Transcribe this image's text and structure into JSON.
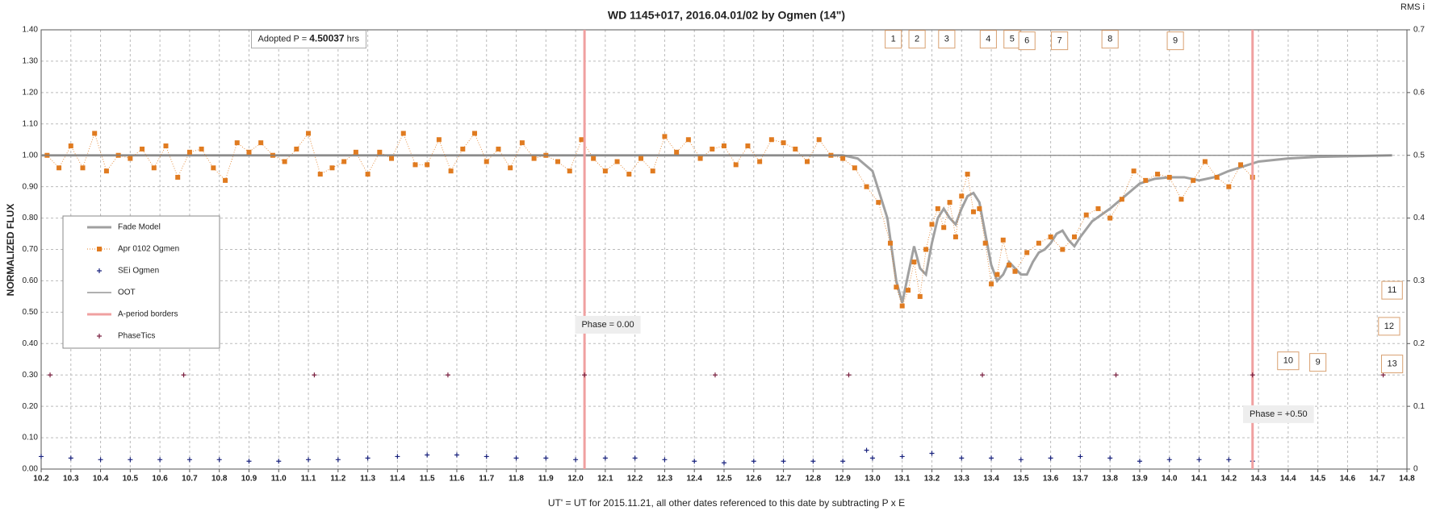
{
  "chart_data": {
    "type": "line",
    "title": "WD 1145+017, 2016.04.01/02 by Ogmen (14\")",
    "x_label": "UT' = UT for 2015.11.21, all other dates referenced to this date by subtracting P x E",
    "y_label": "NORMALIZED FLUX",
    "y2_label": "RMS i",
    "xlim": [
      10.2,
      14.8
    ],
    "ylim": [
      0,
      1.4
    ],
    "y2lim": [
      0,
      0.7
    ],
    "grid": true,
    "legend": "center-left",
    "xticks": [
      10.2,
      10.3,
      10.4,
      10.5,
      10.6,
      10.7,
      10.8,
      10.9,
      {
        "value": 11,
        "label": "11.0"
      },
      11.1,
      11.2,
      11.3,
      11.4,
      11.5,
      11.6,
      11.7,
      11.8,
      11.9,
      {
        "value": 12,
        "label": "12.0"
      },
      12.1,
      12.2,
      12.3,
      12.4,
      12.5,
      12.6,
      12.7,
      12.8,
      12.9,
      {
        "value": 13,
        "label": "13.0"
      },
      13.1,
      13.2,
      13.3,
      13.4,
      13.5,
      13.6,
      13.7,
      13.8,
      13.9,
      {
        "value": 14,
        "label": "14.0"
      },
      14.1,
      14.2,
      14.3,
      14.4,
      14.5,
      14.6,
      14.7,
      14.8
    ],
    "yticks": [
      {
        "value": 0,
        "label": "0.00"
      },
      {
        "value": 0.1,
        "label": "0.10"
      },
      {
        "value": 0.2,
        "label": "0.20"
      },
      {
        "value": 0.3,
        "label": "0.30"
      },
      {
        "value": 0.4,
        "label": "0.40"
      },
      {
        "value": 0.5,
        "label": "0.50"
      },
      {
        "value": 0.6,
        "label": "0.60"
      },
      {
        "value": 0.7,
        "label": "0.70"
      },
      {
        "value": 0.8,
        "label": "0.80"
      },
      {
        "value": 0.9,
        "label": "0.90"
      },
      {
        "value": 1,
        "label": "1.00"
      },
      {
        "value": 1.1,
        "label": "1.10"
      },
      {
        "value": 1.2,
        "label": "1.20"
      },
      {
        "value": 1.3,
        "label": "1.30"
      },
      {
        "value": 1.4,
        "label": "1.40"
      }
    ],
    "y2ticks": [
      0,
      0.1,
      0.2,
      0.3,
      0.4,
      0.5,
      0.6,
      0.7
    ],
    "series": [
      {
        "name": "Fade Model",
        "style": "line",
        "color": "#a0a0a0",
        "x": [
          10.2,
          12.9,
          12.95,
          13.0,
          13.05,
          13.08,
          13.1,
          13.12,
          13.14,
          13.16,
          13.18,
          13.2,
          13.22,
          13.24,
          13.26,
          13.28,
          13.3,
          13.32,
          13.34,
          13.36,
          13.38,
          13.4,
          13.42,
          13.44,
          13.46,
          13.48,
          13.5,
          13.52,
          13.54,
          13.56,
          13.58,
          13.6,
          13.62,
          13.64,
          13.66,
          13.68,
          13.7,
          13.74,
          13.8,
          13.85,
          13.9,
          13.95,
          14.0,
          14.05,
          14.1,
          14.15,
          14.2,
          14.3,
          14.4,
          14.5,
          14.75
        ],
        "values": [
          1.0,
          1.0,
          0.99,
          0.95,
          0.8,
          0.6,
          0.53,
          0.62,
          0.71,
          0.64,
          0.62,
          0.72,
          0.8,
          0.83,
          0.8,
          0.78,
          0.83,
          0.87,
          0.88,
          0.85,
          0.75,
          0.65,
          0.6,
          0.62,
          0.66,
          0.64,
          0.62,
          0.62,
          0.66,
          0.69,
          0.7,
          0.72,
          0.75,
          0.76,
          0.73,
          0.71,
          0.74,
          0.79,
          0.83,
          0.87,
          0.91,
          0.925,
          0.93,
          0.93,
          0.92,
          0.93,
          0.95,
          0.98,
          0.99,
          0.995,
          1.0
        ]
      },
      {
        "name": "Apr 0102 Ogmen",
        "style": "square-dotted",
        "color": "#e07b20",
        "x": [
          10.22,
          10.26,
          10.3,
          10.34,
          10.38,
          10.42,
          10.46,
          10.5,
          10.54,
          10.58,
          10.62,
          10.66,
          10.7,
          10.74,
          10.78,
          10.82,
          10.86,
          10.9,
          10.94,
          10.98,
          11.02,
          11.06,
          11.1,
          11.14,
          11.18,
          11.22,
          11.26,
          11.3,
          11.34,
          11.38,
          11.42,
          11.46,
          11.5,
          11.54,
          11.58,
          11.62,
          11.66,
          11.7,
          11.74,
          11.78,
          11.82,
          11.86,
          11.9,
          11.94,
          11.98,
          12.02,
          12.06,
          12.1,
          12.14,
          12.18,
          12.22,
          12.26,
          12.3,
          12.34,
          12.38,
          12.42,
          12.46,
          12.5,
          12.54,
          12.58,
          12.62,
          12.66,
          12.7,
          12.74,
          12.78,
          12.82,
          12.86,
          12.9,
          12.94,
          12.98,
          13.02,
          13.06,
          13.08,
          13.1,
          13.12,
          13.14,
          13.16,
          13.18,
          13.2,
          13.22,
          13.24,
          13.26,
          13.28,
          13.3,
          13.32,
          13.34,
          13.36,
          13.38,
          13.4,
          13.42,
          13.44,
          13.46,
          13.48,
          13.52,
          13.56,
          13.6,
          13.64,
          13.68,
          13.72,
          13.76,
          13.8,
          13.84,
          13.88,
          13.92,
          13.96,
          14.0,
          14.04,
          14.08,
          14.12,
          14.16,
          14.2,
          14.24,
          14.28
        ],
        "values": [
          1.0,
          0.96,
          1.03,
          0.96,
          1.07,
          0.95,
          1.0,
          0.99,
          1.02,
          0.96,
          1.03,
          0.93,
          1.01,
          1.02,
          0.96,
          0.92,
          1.04,
          1.01,
          1.04,
          1.0,
          0.98,
          1.02,
          1.07,
          0.94,
          0.96,
          0.98,
          1.01,
          0.94,
          1.01,
          0.99,
          1.07,
          0.97,
          0.97,
          1.05,
          0.95,
          1.02,
          1.07,
          0.98,
          1.02,
          0.96,
          1.04,
          0.99,
          1.0,
          0.98,
          0.95,
          1.05,
          0.99,
          0.95,
          0.98,
          0.94,
          0.99,
          0.95,
          1.06,
          1.01,
          1.05,
          0.99,
          1.02,
          1.03,
          0.97,
          1.03,
          0.98,
          1.05,
          1.04,
          1.02,
          0.98,
          1.05,
          1.0,
          0.99,
          0.96,
          0.9,
          0.85,
          0.72,
          0.58,
          0.52,
          0.57,
          0.66,
          0.55,
          0.7,
          0.78,
          0.83,
          0.77,
          0.85,
          0.74,
          0.87,
          0.94,
          0.82,
          0.83,
          0.72,
          0.59,
          0.62,
          0.73,
          0.65,
          0.63,
          0.69,
          0.72,
          0.74,
          0.7,
          0.74,
          0.81,
          0.83,
          0.8,
          0.86,
          0.95,
          0.92,
          0.94,
          0.93,
          0.86,
          0.92,
          0.98,
          0.93,
          0.9,
          0.97,
          0.93
        ]
      },
      {
        "name": "SEi Ogmen",
        "style": "plus",
        "color": "#1a237e",
        "x": [
          10.2,
          10.3,
          10.4,
          10.5,
          10.6,
          10.7,
          10.8,
          10.9,
          11.0,
          11.1,
          11.2,
          11.3,
          11.4,
          11.5,
          11.6,
          11.7,
          11.8,
          11.9,
          12.0,
          12.1,
          12.2,
          12.3,
          12.4,
          12.5,
          12.6,
          12.7,
          12.8,
          12.9,
          12.98,
          13.0,
          13.1,
          13.2,
          13.3,
          13.4,
          13.5,
          13.6,
          13.7,
          13.8,
          13.9,
          14.0,
          14.1,
          14.2,
          14.28
        ],
        "values": [
          0.04,
          0.035,
          0.03,
          0.03,
          0.03,
          0.03,
          0.03,
          0.025,
          0.025,
          0.03,
          0.03,
          0.035,
          0.04,
          0.045,
          0.045,
          0.04,
          0.035,
          0.035,
          0.03,
          0.035,
          0.035,
          0.03,
          0.025,
          0.02,
          0.025,
          0.025,
          0.025,
          0.025,
          0.06,
          0.035,
          0.04,
          0.05,
          0.035,
          0.035,
          0.03,
          0.035,
          0.04,
          0.035,
          0.025,
          0.03,
          0.03,
          0.03,
          0.025
        ]
      },
      {
        "name": "OOT",
        "style": "line",
        "color": "#808080",
        "x": [
          10.2,
          14.75
        ],
        "values": [
          1.0,
          1.0
        ]
      },
      {
        "name": "A-period borders",
        "style": "vline",
        "color": "#f0a0a0",
        "x": [
          12.03,
          14.28
        ]
      },
      {
        "name": "PhaseTics",
        "style": "plus",
        "color": "#7a2040",
        "x": [
          10.23,
          10.68,
          11.12,
          11.57,
          12.03,
          12.47,
          12.92,
          13.37,
          13.82,
          14.28,
          14.72
        ],
        "values": [
          0.3,
          0.3,
          0.3,
          0.3,
          0.3,
          0.3,
          0.3,
          0.3,
          0.3,
          0.3,
          0.3
        ]
      }
    ],
    "annotations": [
      {
        "parts": [
          "Adopted P = ",
          "4.50037",
          " hrs"
        ],
        "x": 10.93,
        "y": 1.37
      },
      {
        "text": "Phase = 0.00",
        "x": 12.02,
        "y": 0.46
      },
      {
        "text": "Phase = +0.50",
        "x": 14.27,
        "y": 0.175
      }
    ],
    "boxes": [
      {
        "text": "1",
        "x": 13.07,
        "y": 1.37
      },
      {
        "text": "2",
        "x": 13.15,
        "y": 1.37
      },
      {
        "text": "3",
        "x": 13.25,
        "y": 1.37
      },
      {
        "text": "4",
        "x": 13.39,
        "y": 1.37
      },
      {
        "text": "5",
        "x": 13.47,
        "y": 1.37
      },
      {
        "text": "6",
        "x": 13.52,
        "y": 1.365
      },
      {
        "text": "7",
        "x": 13.63,
        "y": 1.365
      },
      {
        "text": "8",
        "x": 13.8,
        "y": 1.37
      },
      {
        "text": "9",
        "x": 14.02,
        "y": 1.365
      },
      {
        "text": "11",
        "x": 14.75,
        "y": 0.57
      },
      {
        "text": "12",
        "x": 14.74,
        "y": 0.455
      },
      {
        "text": "10",
        "x": 14.4,
        "y": 0.345
      },
      {
        "text": "9",
        "x": 14.5,
        "y": 0.34
      },
      {
        "text": "13",
        "x": 14.75,
        "y": 0.335
      }
    ]
  }
}
